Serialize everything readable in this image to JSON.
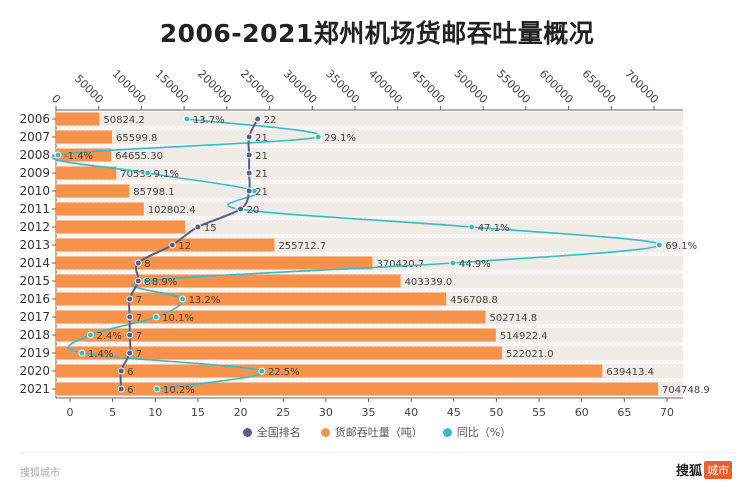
{
  "title": "2006-2021郑州机场货邮吞吐量概况",
  "legend": [
    {
      "label": "全国排名",
      "color": "#56608a"
    },
    {
      "label": "货邮吞吐量（吨）",
      "color": "#f7924a"
    },
    {
      "label": "同比（%）",
      "color": "#35bccb"
    }
  ],
  "footer": {
    "source": "搜狐城市",
    "logo_text": "搜狐",
    "logo_badge": "城市"
  },
  "chart_data": {
    "type": "bar",
    "orientation": "horizontal",
    "categories": [
      "2006",
      "2007",
      "2008",
      "2009",
      "2010",
      "2011",
      "2012",
      "2013",
      "2014",
      "2015",
      "2016",
      "2017",
      "2018",
      "2019",
      "2020",
      "2021"
    ],
    "top_axis": {
      "range": [
        0,
        750000
      ],
      "ticks": [
        "0",
        "50000",
        "100000",
        "150000",
        "200000",
        "250000",
        "300000",
        "350000",
        "400000",
        "450000",
        "500000",
        "550000",
        "600000",
        "650000",
        "700000"
      ]
    },
    "bottom_axis": {
      "range": [
        0,
        70
      ],
      "ticks": [
        "0",
        "5",
        "10",
        "15",
        "20",
        "25",
        "30",
        "35",
        "40",
        "45",
        "50",
        "55",
        "60",
        "65",
        "70"
      ]
    },
    "grid": "dashed horizontal",
    "legend_position": "bottom",
    "series": [
      {
        "name": "货邮吞吐量（吨）",
        "type": "bar",
        "axis": "top",
        "color": "#f7924a",
        "values": [
          50824.2,
          65599.8,
          64655.3,
          70533,
          85798.1,
          102802.4,
          151200,
          255712.7,
          370420.7,
          403339.0,
          456708.8,
          502714.8,
          514922.4,
          522021.0,
          639413.4,
          704748.9
        ],
        "labels": [
          "50824.2",
          "65599.8",
          "64655.30",
          "70533",
          "85798.1",
          "102802.4",
          "",
          "255712.7",
          "370420.7",
          "403339.0",
          "456708.8",
          "502714.8",
          "514922.4",
          "522021.0",
          "639413.4",
          "704748.9"
        ]
      },
      {
        "name": "全国排名",
        "type": "line",
        "axis": "bottom",
        "color": "#56608a",
        "values": [
          22,
          21,
          21,
          21,
          21,
          20,
          15,
          12,
          8,
          8,
          7,
          7,
          7,
          7,
          6,
          6
        ],
        "labels": [
          "22",
          "21",
          "21",
          "21",
          "21",
          "20",
          "15",
          "12",
          "8",
          "8",
          "7",
          "7",
          "7",
          "7",
          "6",
          "6"
        ]
      },
      {
        "name": "同比（%）",
        "type": "line",
        "axis": "bottom",
        "color": "#35bccb",
        "values": [
          13.7,
          29.1,
          -1.4,
          9.1,
          21.6,
          19.8,
          47.1,
          69.1,
          44.9,
          8.9,
          13.2,
          10.1,
          2.4,
          1.4,
          22.5,
          10.2
        ],
        "labels": [
          "13.7%",
          "29.1%",
          "-1.4%",
          "9.1%",
          "",
          "",
          "47.1%",
          "69.1%",
          "44.9%",
          "8.9%",
          "13.2%",
          "10.1%",
          "2.4%",
          "1.4%",
          "22.5%",
          "10.2%"
        ]
      }
    ]
  }
}
